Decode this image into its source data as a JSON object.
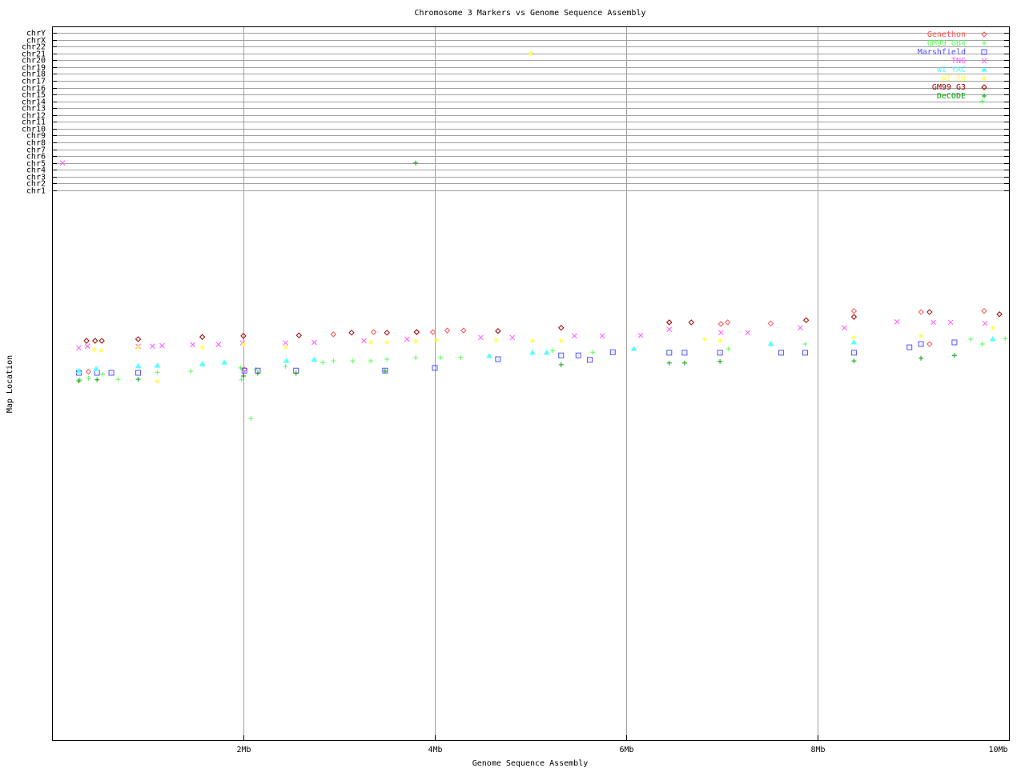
{
  "chart_data": {
    "type": "scatter",
    "title": "Chromosome 3 Markers vs Genome Sequence Assembly",
    "xlabel": "Genome Sequence Assembly",
    "ylabel": "Map Location",
    "xlim": [
      0,
      10
    ],
    "x_unit": "Mb",
    "x_ticks": [
      {
        "value": 2,
        "label": "2Mb"
      },
      {
        "value": 4,
        "label": "4Mb"
      },
      {
        "value": 6,
        "label": "6Mb"
      },
      {
        "value": 8,
        "label": "8Mb"
      },
      {
        "value": 10,
        "label": "10Mb"
      }
    ],
    "y_categories": [
      "chr1",
      "chr2",
      "chr3",
      "chr4",
      "chr5",
      "chr6",
      "chr7",
      "chr8",
      "chr9",
      "chr10",
      "chr11",
      "chr12",
      "chr13",
      "chr14",
      "chr15",
      "chr16",
      "chr17",
      "chr18",
      "chr19",
      "chr20",
      "chr21",
      "chr22",
      "chrX",
      "chrY"
    ],
    "ylim_map": [
      0,
      100
    ],
    "grid": true,
    "legend_position": "top-right",
    "series": [
      {
        "name": "Genethon",
        "color": "#ff5050",
        "marker": "diamond",
        "points": [
          [
            0.38,
            67.9
          ],
          [
            2.01,
            68.3
          ],
          [
            2.94,
            74.8
          ],
          [
            3.36,
            75.2
          ],
          [
            3.81,
            75.2
          ],
          [
            3.98,
            75.2
          ],
          [
            4.13,
            75.5
          ],
          [
            4.3,
            75.5
          ],
          [
            6.45,
            77.0
          ],
          [
            6.99,
            76.7
          ],
          [
            7.06,
            77.0
          ],
          [
            7.51,
            76.8
          ],
          [
            8.38,
            79.1
          ],
          [
            9.08,
            78.9
          ],
          [
            9.17,
            73.0
          ],
          [
            9.74,
            79.1
          ]
        ]
      },
      {
        "name": "GM99 GB4",
        "color": "#55ff55",
        "marker": "plus",
        "points": [
          [
            0.29,
            66.4
          ],
          [
            0.38,
            66.7
          ],
          [
            0.53,
            67.4
          ],
          [
            0.69,
            66.5
          ],
          [
            1.1,
            67.8
          ],
          [
            1.45,
            68.0
          ],
          [
            1.57,
            69.2
          ],
          [
            1.97,
            68.6
          ],
          [
            1.98,
            66.4
          ],
          [
            2.08,
            59.3
          ],
          [
            2.13,
            68.3
          ],
          [
            2.44,
            68.9
          ],
          [
            2.83,
            69.6
          ],
          [
            2.94,
            69.9
          ],
          [
            3.14,
            69.9
          ],
          [
            3.33,
            69.9
          ],
          [
            3.5,
            70.2
          ],
          [
            3.8,
            70.5
          ],
          [
            4.06,
            70.5
          ],
          [
            4.27,
            70.5
          ],
          [
            5.23,
            71.8
          ],
          [
            5.65,
            71.5
          ],
          [
            7.07,
            72.1
          ],
          [
            7.87,
            73.0
          ],
          [
            9.6,
            73.9
          ],
          [
            9.72,
            73.0
          ],
          [
            9.96,
            74.0
          ],
          [
            9.72,
            "chr14"
          ]
        ]
      },
      {
        "name": "Marshfield",
        "color": "#5050ff",
        "marker": "square",
        "points": [
          [
            0.28,
            67.7
          ],
          [
            0.47,
            67.7
          ],
          [
            0.62,
            67.7
          ],
          [
            0.9,
            67.7
          ],
          [
            2.01,
            68.1
          ],
          [
            2.15,
            68.1
          ],
          [
            2.55,
            68.1
          ],
          [
            3.48,
            68.1
          ],
          [
            4.0,
            68.6
          ],
          [
            4.66,
            70.2
          ],
          [
            5.32,
            70.9
          ],
          [
            5.5,
            70.9
          ],
          [
            5.62,
            70.1
          ],
          [
            5.86,
            71.5
          ],
          [
            6.45,
            71.4
          ],
          [
            6.61,
            71.4
          ],
          [
            6.98,
            71.4
          ],
          [
            7.62,
            71.4
          ],
          [
            7.87,
            71.4
          ],
          [
            8.38,
            71.4
          ],
          [
            8.96,
            72.4
          ],
          [
            9.08,
            73.0
          ],
          [
            9.43,
            73.3
          ]
        ]
      },
      {
        "name": "TNG",
        "color": "#ff55ff",
        "marker": "x",
        "points": [
          [
            0.11,
            "chr5"
          ],
          [
            0.28,
            72.3
          ],
          [
            0.37,
            72.6
          ],
          [
            0.9,
            72.6
          ],
          [
            1.05,
            72.6
          ],
          [
            1.15,
            72.7
          ],
          [
            1.47,
            72.9
          ],
          [
            1.74,
            72.9
          ],
          [
            1.99,
            73.2
          ],
          [
            2.44,
            73.2
          ],
          [
            2.74,
            73.3
          ],
          [
            3.26,
            73.6
          ],
          [
            3.71,
            73.9
          ],
          [
            4.48,
            74.2
          ],
          [
            4.81,
            74.2
          ],
          [
            5.46,
            74.5
          ],
          [
            5.75,
            74.5
          ],
          [
            6.15,
            74.6
          ],
          [
            6.45,
            75.7
          ],
          [
            6.99,
            75.1
          ],
          [
            7.27,
            75.1
          ],
          [
            7.82,
            76.0
          ],
          [
            8.28,
            76.0
          ],
          [
            8.83,
            77.1
          ],
          [
            9.21,
            77.0
          ],
          [
            9.39,
            77.0
          ],
          [
            9.75,
            76.8
          ]
        ]
      },
      {
        "name": "WI YAC",
        "color": "#55ffff",
        "marker": "triangle",
        "points": [
          [
            0.28,
            68.0
          ],
          [
            0.46,
            68.4
          ],
          [
            0.9,
            68.9
          ],
          [
            1.1,
            69.0
          ],
          [
            1.57,
            69.3
          ],
          [
            1.8,
            69.6
          ],
          [
            2.45,
            69.9
          ],
          [
            2.74,
            70.1
          ],
          [
            4.57,
            70.8
          ],
          [
            5.02,
            71.4
          ],
          [
            5.17,
            71.4
          ],
          [
            6.08,
            72.1
          ],
          [
            7.51,
            73.0
          ],
          [
            8.38,
            73.3
          ],
          [
            9.83,
            73.9
          ]
        ]
      },
      {
        "name": "WI RH",
        "color": "#ffff55",
        "marker": "asterisk",
        "points": [
          [
            0.44,
            72.0
          ],
          [
            0.51,
            71.8
          ],
          [
            0.9,
            72.4
          ],
          [
            1.1,
            66.1
          ],
          [
            1.57,
            72.4
          ],
          [
            2.0,
            72.9
          ],
          [
            2.44,
            72.4
          ],
          [
            3.33,
            73.3
          ],
          [
            3.5,
            73.3
          ],
          [
            3.8,
            73.5
          ],
          [
            4.02,
            73.7
          ],
          [
            4.64,
            73.7
          ],
          [
            5.0,
            "chr21"
          ],
          [
            5.02,
            73.6
          ],
          [
            5.32,
            73.6
          ],
          [
            6.82,
            73.9
          ],
          [
            6.98,
            73.6
          ],
          [
            8.38,
            74.2
          ],
          [
            9.08,
            74.5
          ],
          [
            9.83,
            76.0
          ]
        ]
      },
      {
        "name": "GM99 G3",
        "color": "#a00000",
        "marker": "diamond",
        "points": [
          [
            0.36,
            73.6
          ],
          [
            0.45,
            73.6
          ],
          [
            0.52,
            73.6
          ],
          [
            0.9,
            73.9
          ],
          [
            1.57,
            74.3
          ],
          [
            2.0,
            74.5
          ],
          [
            2.58,
            74.6
          ],
          [
            3.13,
            75.1
          ],
          [
            3.5,
            75.1
          ],
          [
            3.81,
            75.2
          ],
          [
            4.66,
            75.4
          ],
          [
            5.32,
            76.0
          ],
          [
            6.45,
            77.0
          ],
          [
            6.68,
            77.0
          ],
          [
            7.88,
            77.4
          ],
          [
            8.38,
            78.0
          ],
          [
            9.17,
            78.9
          ],
          [
            9.9,
            78.5
          ]
        ]
      },
      {
        "name": "DeCODE",
        "color": "#00a000",
        "marker": "plus",
        "points": [
          [
            0.28,
            66.2
          ],
          [
            0.47,
            66.4
          ],
          [
            0.9,
            66.5
          ],
          [
            2.0,
            67.1
          ],
          [
            2.15,
            67.6
          ],
          [
            2.55,
            67.6
          ],
          [
            3.48,
            68.0
          ],
          [
            3.8,
            "chr5"
          ],
          [
            5.32,
            69.2
          ],
          [
            6.45,
            69.5
          ],
          [
            6.61,
            69.5
          ],
          [
            6.98,
            69.8
          ],
          [
            8.38,
            69.9
          ],
          [
            9.08,
            70.4
          ],
          [
            9.43,
            70.9
          ]
        ]
      }
    ]
  }
}
